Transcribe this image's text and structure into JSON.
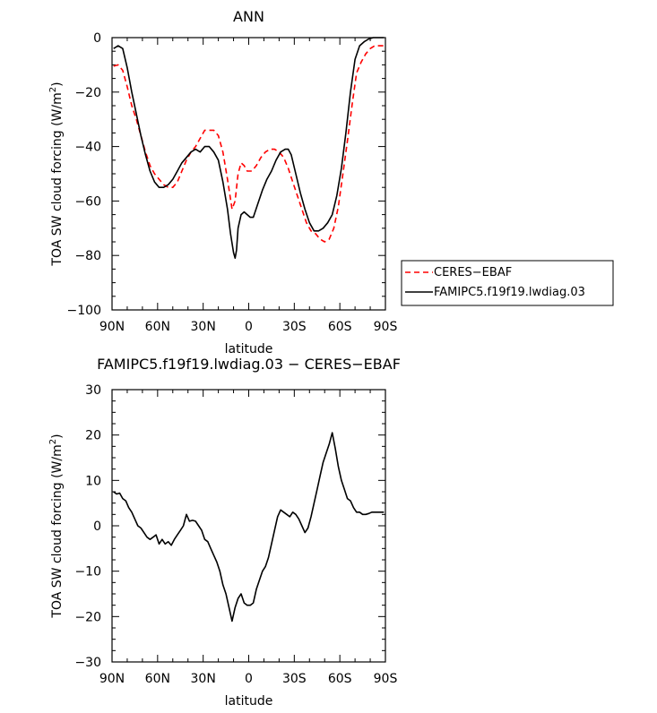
{
  "chart_data": [
    {
      "type": "line",
      "title": "ANN",
      "xlabel": "latitude",
      "ylabel": "TOA SW cloud forcing (W/m",
      "ylabel_sup": "2",
      "ylabel_close": ")",
      "xlim": [
        90,
        -90
      ],
      "ylim": [
        -100,
        0
      ],
      "x_ticks": [
        90,
        60,
        30,
        0,
        -30,
        -60,
        -90
      ],
      "x_tick_labels": [
        "90N",
        "60N",
        "30N",
        "0",
        "30S",
        "60S",
        "90S"
      ],
      "y_ticks": [
        0,
        -20,
        -40,
        -60,
        -80,
        -100
      ],
      "y_tick_labels": [
        "0",
        "−20",
        "−40",
        "−60",
        "−80",
        "−100"
      ],
      "legend": {
        "placement": "right"
      },
      "series": [
        {
          "name": "CERES−EBAF",
          "color": "#ff0000",
          "dash": "dashed",
          "x": [
            89,
            86,
            83,
            80,
            77,
            74,
            71,
            68,
            65,
            62,
            59,
            56,
            53,
            50,
            47,
            44,
            41,
            38,
            35,
            32,
            29,
            26,
            23,
            20,
            17,
            14,
            11,
            9,
            7,
            5,
            3,
            1,
            -2,
            -5,
            -8,
            -11,
            -14,
            -17,
            -20,
            -23,
            -26,
            -29,
            -32,
            -35,
            -38,
            -41,
            -44,
            -47,
            -50,
            -53,
            -56,
            -59,
            -62,
            -65,
            -68,
            -71,
            -74,
            -77,
            -80,
            -83,
            -86,
            -89
          ],
          "y": [
            -10.5,
            -10,
            -12,
            -18,
            -25,
            -30,
            -36,
            -42,
            -47,
            -50,
            -52,
            -54,
            -55,
            -55,
            -53,
            -49,
            -45,
            -42,
            -40,
            -37,
            -34,
            -34,
            -34,
            -36,
            -42,
            -52,
            -63,
            -60,
            -50,
            -46,
            -47,
            -49,
            -49,
            -47,
            -44,
            -42,
            -41,
            -41,
            -42,
            -44,
            -48,
            -53,
            -58,
            -63,
            -68,
            -71,
            -72,
            -74,
            -75,
            -74,
            -70,
            -62,
            -50,
            -38,
            -25,
            -13,
            -9,
            -6,
            -4,
            -3,
            -3,
            -3
          ]
        },
        {
          "name": "FAMIPC5.f19f19.lwdiag.03",
          "color": "#000000",
          "dash": "solid",
          "x": [
            89,
            86,
            83,
            80,
            77,
            74,
            71,
            68,
            65,
            62,
            59,
            56,
            53,
            50,
            47,
            44,
            41,
            38,
            35,
            32,
            29,
            26,
            23,
            20,
            17,
            14,
            12,
            10,
            9,
            8,
            7,
            5,
            3,
            1,
            -1,
            -3,
            -6,
            -9,
            -12,
            -15,
            -18,
            -21,
            -24,
            -26,
            -28,
            -31,
            -34,
            -37,
            -40,
            -43,
            -46,
            -49,
            -52,
            -55,
            -58,
            -61,
            -64,
            -67,
            -70,
            -73,
            -76,
            -79,
            -82,
            -86,
            -89
          ],
          "y": [
            -4,
            -3,
            -4,
            -11,
            -20,
            -28,
            -36,
            -43,
            -49,
            -53,
            -55,
            -55,
            -54,
            -52,
            -49,
            -46,
            -44,
            -42,
            -41,
            -42,
            -40,
            -40,
            -42,
            -45,
            -53,
            -63,
            -72,
            -79,
            -81,
            -78,
            -70,
            -65,
            -64,
            -65,
            -66,
            -66,
            -61,
            -56,
            -52,
            -49,
            -45,
            -42,
            -41,
            -41,
            -43,
            -50,
            -57,
            -63,
            -68,
            -71,
            -71,
            -70,
            -68,
            -65,
            -58,
            -48,
            -35,
            -20,
            -8,
            -3,
            -1.5,
            -0.5,
            0,
            0,
            0
          ]
        }
      ]
    },
    {
      "type": "line",
      "title": "FAMIPC5.f19f19.lwdiag.03 − CERES−EBAF",
      "xlabel": "latitude",
      "ylabel": "TOA SW cloud forcing (W/m",
      "ylabel_sup": "2",
      "ylabel_close": ")",
      "xlim": [
        90,
        -90
      ],
      "ylim": [
        -30,
        30
      ],
      "x_ticks": [
        90,
        60,
        30,
        0,
        -30,
        -60,
        -90
      ],
      "x_tick_labels": [
        "90N",
        "60N",
        "30N",
        "0",
        "30S",
        "60S",
        "90S"
      ],
      "y_ticks": [
        30,
        20,
        10,
        0,
        -10,
        -20,
        -30
      ],
      "y_tick_labels": [
        "30",
        "20",
        "10",
        "0",
        "−10",
        "−20",
        "−30"
      ],
      "series": [
        {
          "color": "#000000",
          "dash": "solid",
          "x": [
            89,
            87,
            85,
            83,
            81,
            79,
            77,
            75,
            73,
            71,
            69,
            67,
            65,
            63,
            61,
            59,
            57,
            55,
            53,
            51,
            49,
            47,
            45,
            43,
            41,
            39,
            37,
            35,
            33,
            31,
            29,
            27,
            25,
            23,
            21,
            19,
            17,
            15,
            13,
            11,
            9,
            7,
            5,
            3,
            1,
            -1,
            -3,
            -5,
            -7,
            -9,
            -11,
            -13,
            -15,
            -17,
            -19,
            -21,
            -23,
            -25,
            -27,
            -29,
            -31,
            -33,
            -35,
            -37,
            -39,
            -41,
            -43,
            -45,
            -47,
            -49,
            -51,
            -53,
            -55,
            -57,
            -59,
            -61,
            -63,
            -65,
            -67,
            -69,
            -71,
            -73,
            -75,
            -77,
            -79,
            -81,
            -83,
            -85,
            -87,
            -89
          ],
          "y": [
            7.5,
            7,
            7.2,
            6,
            5.5,
            4,
            3,
            1.5,
            0,
            -0.5,
            -1.5,
            -2.5,
            -3,
            -2.5,
            -2,
            -4,
            -3,
            -4,
            -3.5,
            -4.3,
            -3,
            -2,
            -1,
            0,
            2.5,
            1,
            1.2,
            1,
            0,
            -1,
            -3,
            -3.5,
            -5,
            -6.5,
            -8,
            -10,
            -13,
            -15,
            -18,
            -21,
            -18,
            -16,
            -15,
            -17,
            -17.5,
            -17.5,
            -17,
            -14,
            -12,
            -10,
            -9,
            -7,
            -4,
            -1,
            2,
            3.5,
            3,
            2.5,
            2,
            3,
            2.5,
            1.5,
            0,
            -1.5,
            -0.5,
            2,
            5,
            8,
            11,
            14,
            16,
            18,
            20.5,
            17,
            13,
            10,
            8,
            6,
            5.5,
            4,
            3,
            3,
            2.5,
            2.5,
            2.7,
            3,
            3,
            3,
            3,
            3
          ]
        }
      ]
    }
  ]
}
